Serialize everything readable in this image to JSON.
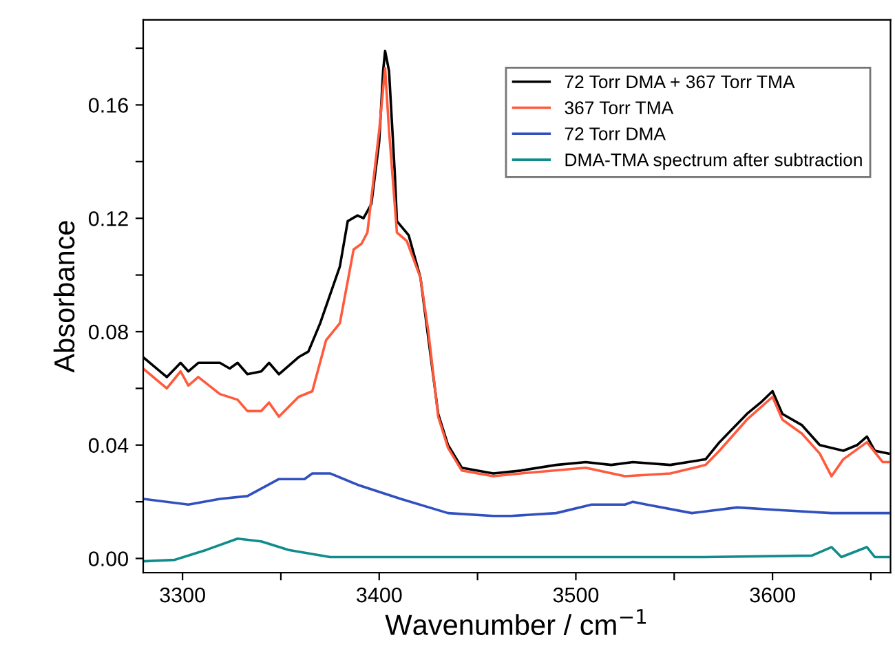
{
  "chart_data": {
    "type": "line",
    "xlabel": "Wavenumber / cm$^{−1}$",
    "ylabel": "Absorbance",
    "xlim": [
      3280,
      3660
    ],
    "ylim": [
      -0.005,
      0.19
    ],
    "xticks": [
      3300,
      {
        "value": 3350,
        "label": null
      },
      3400,
      {
        "value": 3450,
        "label": null
      },
      3500,
      {
        "value": 3550,
        "label": null
      },
      3600,
      {
        "value": 3650,
        "label": null
      }
    ],
    "yticks": [
      {
        "value": 0,
        "label": "0.00"
      },
      {
        "value": 0.02,
        "label": null
      },
      {
        "value": 0.04,
        "label": "0.04"
      },
      {
        "value": 0.06,
        "label": null
      },
      {
        "value": 0.08,
        "label": "0.08"
      },
      {
        "value": 0.1,
        "label": null
      },
      {
        "value": 0.12,
        "label": "0.12"
      },
      {
        "value": 0.14,
        "label": null
      },
      {
        "value": 0.16,
        "label": "0.16"
      },
      {
        "value": 0.18,
        "label": null
      }
    ],
    "grid": false,
    "legend": "top right",
    "marker": "none",
    "line_style": "solid",
    "series": [
      {
        "name": "72 Torr DMA + 367 Torr TMA",
        "color": "#000000",
        "x": [
          3280,
          3292,
          3299,
          3303,
          3308,
          3319,
          3324,
          3328,
          3333,
          3340,
          3344,
          3349,
          3359,
          3364,
          3370,
          3380,
          3384,
          3389,
          3392,
          3396,
          3400,
          3402,
          3403,
          3405,
          3408,
          3409,
          3415,
          3421,
          3430,
          3435,
          3442,
          3458,
          3472,
          3490,
          3505,
          3518,
          3529,
          3548,
          3566,
          3573,
          3587,
          3594,
          3600,
          3605,
          3615,
          3624,
          3636,
          3643,
          3648,
          3652,
          3659
        ],
        "values": [
          0.071,
          0.064,
          0.069,
          0.066,
          0.069,
          0.069,
          0.067,
          0.069,
          0.065,
          0.066,
          0.069,
          0.065,
          0.071,
          0.073,
          0.083,
          0.103,
          0.119,
          0.121,
          0.12,
          0.125,
          0.147,
          0.172,
          0.179,
          0.172,
          0.135,
          0.119,
          0.114,
          0.099,
          0.051,
          0.04,
          0.032,
          0.03,
          0.031,
          0.033,
          0.034,
          0.033,
          0.034,
          0.033,
          0.035,
          0.041,
          0.051,
          0.055,
          0.059,
          0.051,
          0.047,
          0.04,
          0.038,
          0.04,
          0.043,
          0.038,
          0.037
        ]
      },
      {
        "name": "367 Torr TMA",
        "color": "#ff5a3c",
        "x": [
          3280,
          3292,
          3299,
          3303,
          3308,
          3319,
          3328,
          3333,
          3340,
          3344,
          3349,
          3359,
          3366,
          3373,
          3380,
          3387,
          3391,
          3394,
          3400,
          3403,
          3405,
          3409,
          3414,
          3421,
          3425,
          3430,
          3435,
          3442,
          3458,
          3472,
          3505,
          3525,
          3548,
          3566,
          3573,
          3587,
          3600,
          3605,
          3615,
          3624,
          3630,
          3636,
          3648,
          3656,
          3659
        ],
        "values": [
          0.067,
          0.06,
          0.066,
          0.061,
          0.064,
          0.058,
          0.056,
          0.052,
          0.052,
          0.055,
          0.05,
          0.057,
          0.059,
          0.077,
          0.083,
          0.109,
          0.111,
          0.115,
          0.151,
          0.173,
          0.151,
          0.115,
          0.112,
          0.099,
          0.08,
          0.05,
          0.039,
          0.031,
          0.029,
          0.03,
          0.032,
          0.029,
          0.03,
          0.033,
          0.038,
          0.049,
          0.057,
          0.049,
          0.044,
          0.037,
          0.029,
          0.035,
          0.041,
          0.034,
          0.034
        ]
      },
      {
        "name": "72 Torr DMA",
        "color": "#3050c0",
        "x": [
          3280,
          3303,
          3319,
          3333,
          3349,
          3362,
          3366,
          3375,
          3389,
          3411,
          3435,
          3458,
          3467,
          3490,
          3508,
          3525,
          3529,
          3536,
          3559,
          3582,
          3605,
          3630,
          3659
        ],
        "values": [
          0.021,
          0.019,
          0.021,
          0.022,
          0.028,
          0.028,
          0.03,
          0.03,
          0.026,
          0.021,
          0.016,
          0.015,
          0.015,
          0.016,
          0.019,
          0.019,
          0.02,
          0.019,
          0.016,
          0.018,
          0.017,
          0.016,
          0.016
        ]
      },
      {
        "name": "DMA-TMA spectrum after subtraction",
        "color": "#108c8c",
        "x": [
          3280,
          3296,
          3312,
          3328,
          3340,
          3354,
          3375,
          3458,
          3565,
          3620,
          3630,
          3635,
          3648,
          3652,
          3659
        ],
        "values": [
          -0.001,
          -0.0005,
          0.003,
          0.007,
          0.006,
          0.003,
          0.0005,
          0.0005,
          0.0005,
          0.001,
          0.004,
          0.0005,
          0.004,
          0.0005,
          0.0005
        ]
      }
    ]
  }
}
